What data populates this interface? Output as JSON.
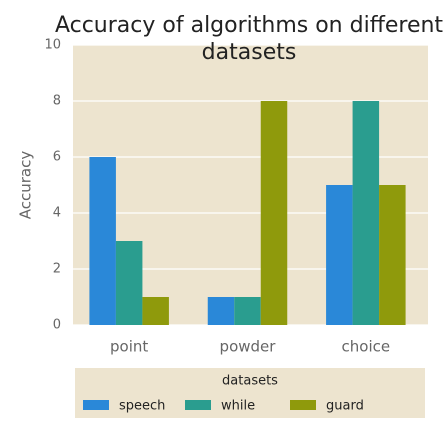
{
  "chart_data": {
    "type": "bar",
    "title": "Accuracy of algorithms on different datasets",
    "ylabel": "Accuracy",
    "categories": [
      "point",
      "powder",
      "choice"
    ],
    "series": [
      {
        "name": "speech",
        "color": "#2a88d8",
        "values": [
          6,
          1,
          5
        ]
      },
      {
        "name": "while",
        "color": "#2a9d8f",
        "values": [
          3,
          1,
          8
        ]
      },
      {
        "name": "guard",
        "color": "#8f9a0c",
        "values": [
          1,
          8,
          5
        ]
      }
    ],
    "legend_title": "datasets",
    "legend": "bottom",
    "ylim": [
      0,
      10
    ],
    "yticks": [
      0,
      2,
      4,
      6,
      8,
      10
    ],
    "grid": true
  }
}
